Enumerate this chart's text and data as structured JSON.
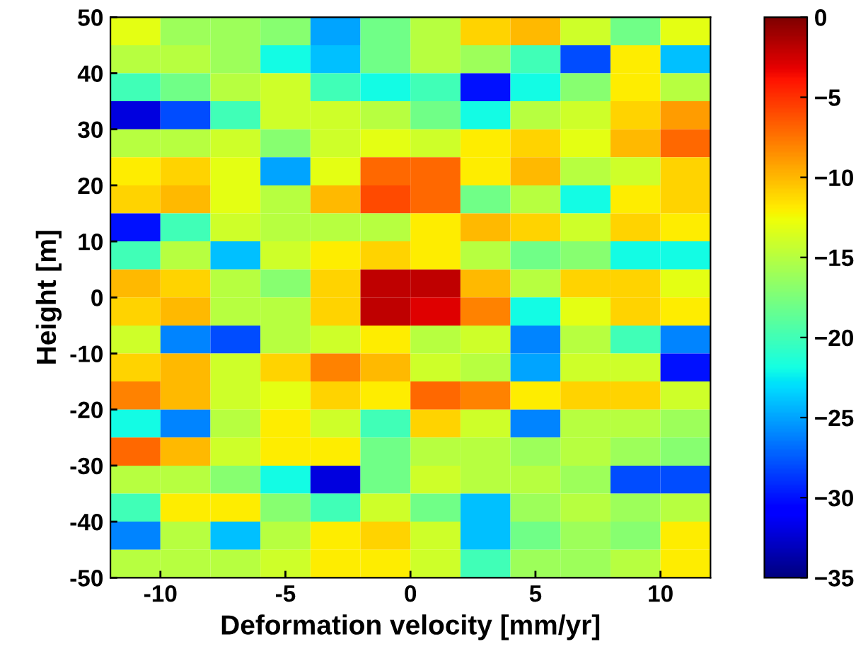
{
  "chart_data": {
    "type": "heatmap",
    "xlabel": "Deformation velocity [mm/yr]",
    "ylabel": "Height [m]",
    "x": [
      -11,
      -9,
      -7,
      -5,
      -3,
      -1,
      1,
      3,
      5,
      7,
      9,
      11
    ],
    "y": [
      47.5,
      42.5,
      37.5,
      32.5,
      27.5,
      22.5,
      17.5,
      12.5,
      7.5,
      2.5,
      -2.5,
      -7.5,
      -12.5,
      -17.5,
      -22.5,
      -27.5,
      -32.5,
      -37.5,
      -42.5,
      -47.5
    ],
    "xlim": [
      -12,
      12
    ],
    "xticks": [
      -10,
      -5,
      0,
      5,
      10
    ],
    "ylim": [
      -50,
      50
    ],
    "yticks": [
      -50,
      -40,
      -30,
      -20,
      -10,
      0,
      10,
      20,
      30,
      40,
      50
    ],
    "clim": [
      -35,
      0
    ],
    "cticks": [
      -35,
      -30,
      -25,
      -20,
      -15,
      -10,
      -5,
      0
    ],
    "grid": false,
    "cells": [
      [
        -13,
        -16,
        -16,
        -17,
        -25,
        -18,
        -15,
        -11,
        -10,
        -14,
        -18,
        -13
      ],
      [
        -15,
        -15,
        -16,
        -22,
        -24,
        -18,
        -15,
        -16,
        -20,
        -28,
        -12,
        -24
      ],
      [
        -20,
        -18,
        -15,
        -14,
        -20,
        -22,
        -20,
        -30,
        -22,
        -17,
        -12,
        -15
      ],
      [
        -32,
        -28,
        -20,
        -14,
        -14,
        -15,
        -18,
        -22,
        -15,
        -14,
        -11,
        -9
      ],
      [
        -15,
        -15,
        -14,
        -17,
        -14,
        -13,
        -14,
        -12,
        -11,
        -13,
        -10,
        -7
      ],
      [
        -12,
        -11,
        -13,
        -25,
        -13,
        -7,
        -7,
        -12,
        -10,
        -15,
        -14,
        -11
      ],
      [
        -11,
        -10,
        -13,
        -15,
        -10,
        -6,
        -7,
        -18,
        -15,
        -22,
        -12,
        -11
      ],
      [
        -30,
        -20,
        -14,
        -15,
        -15,
        -15,
        -12,
        -10,
        -11,
        -14,
        -11,
        -12
      ],
      [
        -20,
        -15,
        -24,
        -14,
        -12,
        -11,
        -12,
        -15,
        -18,
        -17,
        -22,
        -22
      ],
      [
        -10,
        -11,
        -15,
        -17,
        -11,
        -2,
        -2,
        -10,
        -15,
        -11,
        -11,
        -13
      ],
      [
        -11,
        -10,
        -15,
        -15,
        -11,
        -2,
        -3,
        -8,
        -22,
        -13,
        -11,
        -12
      ],
      [
        -14,
        -26,
        -28,
        -15,
        -14,
        -12,
        -15,
        -14,
        -26,
        -15,
        -20,
        -26
      ],
      [
        -11,
        -10,
        -14,
        -11,
        -8,
        -10,
        -14,
        -15,
        -25,
        -14,
        -14,
        -30
      ],
      [
        -8,
        -10,
        -14,
        -13,
        -11,
        -12,
        -7,
        -8,
        -12,
        -11,
        -11,
        -14
      ],
      [
        -22,
        -26,
        -15,
        -12,
        -14,
        -20,
        -11,
        -14,
        -26,
        -15,
        -15,
        -16
      ],
      [
        -7,
        -10,
        -14,
        -12,
        -12,
        -18,
        -15,
        -15,
        -16,
        -15,
        -16,
        -17
      ],
      [
        -15,
        -15,
        -17,
        -22,
        -32,
        -18,
        -14,
        -15,
        -15,
        -16,
        -28,
        -28
      ],
      [
        -20,
        -12,
        -12,
        -17,
        -20,
        -14,
        -18,
        -24,
        -16,
        -15,
        -16,
        -15
      ],
      [
        -26,
        -15,
        -24,
        -15,
        -12,
        -11,
        -14,
        -24,
        -18,
        -16,
        -17,
        -12
      ],
      [
        -15,
        -15,
        -15,
        -14,
        -12,
        -12,
        -14,
        -20,
        -16,
        -16,
        -15,
        -12
      ]
    ]
  }
}
